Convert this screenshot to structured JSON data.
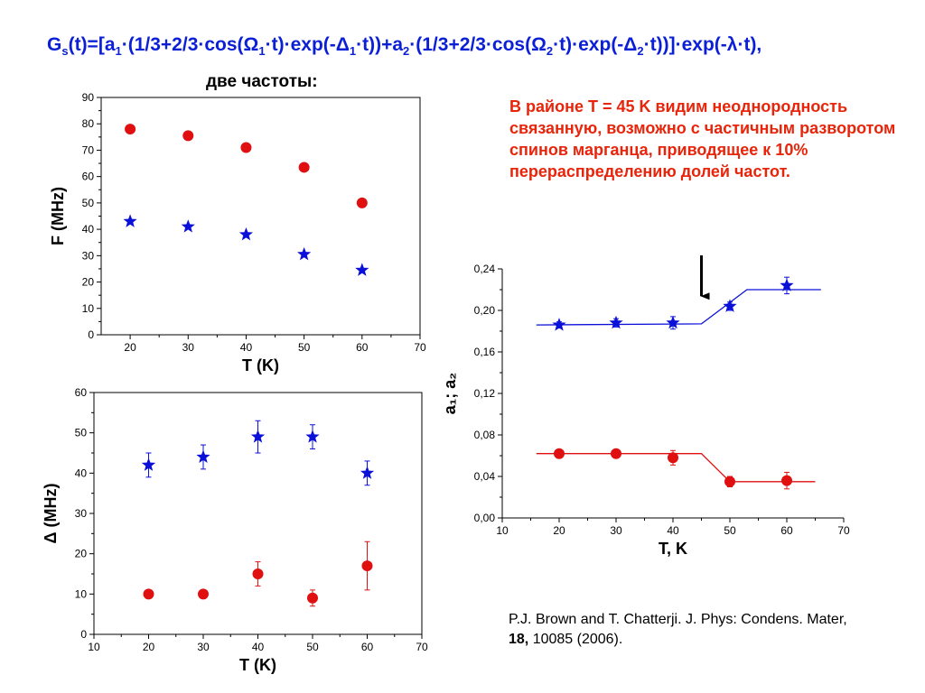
{
  "header": {
    "formula_html": "G<sub>s</sub>(t)=[a<sub>1</sub>·(1/3+2/3·cos(Ω<sub>1</sub>·t)·exp(-Δ<sub>1</sub>·t))+a<sub>2</sub>·(1/3+2/3·cos(Ω<sub>2</sub>·t)·exp(-Δ<sub>2</sub>·t))]·exp(-λ·t),",
    "subtitle": "две частоты:"
  },
  "note": {
    "text": "В районе T = 45 K видим неоднородность связанную, возможно с частичным разворотом спинов марганца, приводящее к 10% перераспределению долей частот."
  },
  "citation": {
    "authors": "P.J. Brown and T. Chatterji. J. Phys: Condens. Mater, ",
    "volume": "18,",
    "rest": " 10085 (2006)."
  },
  "colors": {
    "red": "#e01010",
    "blue": "#0a10d8",
    "title_blue": "#0a1fd6",
    "note_red": "#e8240a"
  },
  "chart_data": [
    {
      "type": "scatter",
      "title": "",
      "xlabel": "T (K)",
      "ylabel": "F (MHz)",
      "xlim": [
        15,
        70
      ],
      "ylim": [
        0,
        90
      ],
      "xticks": [
        20,
        30,
        40,
        50,
        60,
        70
      ],
      "yticks": [
        0,
        10,
        20,
        30,
        40,
        50,
        60,
        70,
        80,
        90
      ],
      "tick_decimals": 0,
      "series": [
        {
          "marker": "circle",
          "color": "#e01010",
          "x": [
            20,
            30,
            40,
            50,
            60
          ],
          "y": [
            78,
            75.5,
            71,
            63.5,
            50
          ]
        },
        {
          "marker": "star",
          "color": "#0a10d8",
          "x": [
            20,
            30,
            40,
            50,
            60
          ],
          "y": [
            43,
            41,
            38,
            30.5,
            24.5
          ]
        }
      ]
    },
    {
      "type": "scatter",
      "title": "",
      "xlabel": "T (K)",
      "ylabel": "Δ (MHz)",
      "xlim": [
        10,
        70
      ],
      "ylim": [
        0,
        60
      ],
      "xticks": [
        10,
        20,
        30,
        40,
        50,
        60,
        70
      ],
      "yticks": [
        0,
        10,
        20,
        30,
        40,
        50,
        60
      ],
      "tick_decimals": 0,
      "series": [
        {
          "marker": "circle",
          "color": "#e01010",
          "x": [
            20,
            30,
            40,
            50,
            60
          ],
          "y": [
            10,
            10,
            15,
            9,
            17
          ],
          "err": [
            0.5,
            0.5,
            3,
            2,
            6
          ]
        },
        {
          "marker": "star",
          "color": "#0a10d8",
          "x": [
            20,
            30,
            40,
            50,
            60
          ],
          "y": [
            42,
            44,
            49,
            49,
            40
          ],
          "err": [
            3,
            3,
            4,
            3,
            3
          ]
        }
      ]
    },
    {
      "type": "scatter",
      "title": "",
      "xlabel": "T, K",
      "ylabel": "a₁; a₂",
      "xlim": [
        10,
        70
      ],
      "ylim": [
        0,
        0.24
      ],
      "xticks": [
        10,
        20,
        30,
        40,
        50,
        60,
        70
      ],
      "yticks": [
        0,
        0.04,
        0.08,
        0.12,
        0.16,
        0.2,
        0.24
      ],
      "tick_decimals": 2,
      "decimal_comma": true,
      "arrow_at": {
        "x": 45,
        "y_top": 0.253,
        "y_bottom": 0.205
      },
      "series": [
        {
          "marker": "star",
          "color": "#0a10d8",
          "x": [
            20,
            30,
            40,
            50,
            60
          ],
          "y": [
            0.186,
            0.188,
            0.188,
            0.204,
            0.224
          ],
          "err": [
            0.003,
            0.004,
            0.006,
            0.004,
            0.008
          ],
          "fit": {
            "x": [
              16,
              45,
              53,
              66
            ],
            "y": [
              0.186,
              0.187,
              0.22,
              0.22
            ]
          }
        },
        {
          "marker": "circle",
          "color": "#e01010",
          "x": [
            20,
            30,
            40,
            50,
            60
          ],
          "y": [
            0.062,
            0.062,
            0.058,
            0.035,
            0.036
          ],
          "err": [
            0.004,
            0.004,
            0.007,
            0.005,
            0.008
          ],
          "fit": {
            "x": [
              16,
              45,
              50,
              65
            ],
            "y": [
              0.062,
              0.062,
              0.035,
              0.035
            ]
          }
        }
      ]
    }
  ]
}
